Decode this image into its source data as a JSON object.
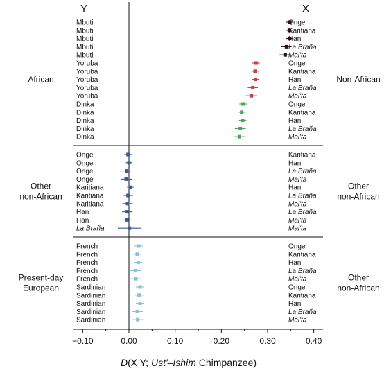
{
  "chart_data": {
    "type": "scatter",
    "error_bars": true,
    "headers": {
      "y": "Y",
      "x": "X"
    },
    "xlabel": {
      "prefix": "D",
      "open": "(X Y; ",
      "ital": "Ust'–Ishim",
      "close": " Chimpanzee)"
    },
    "xlim": [
      -0.12,
      0.42
    ],
    "xticks": [
      {
        "value": -0.1,
        "label": "−0.10"
      },
      {
        "value": 0.0,
        "label": "0.00"
      },
      {
        "value": 0.1,
        "label": "0.10"
      },
      {
        "value": 0.2,
        "label": "0.20"
      },
      {
        "value": 0.3,
        "label": "0.30"
      },
      {
        "value": 0.4,
        "label": "0.40"
      }
    ],
    "panels": [
      {
        "y_group": "African",
        "x_group": "Non-African",
        "rows": [
          {
            "y": "Mbuti",
            "x": "Onge",
            "value": 0.348,
            "err": 0.008,
            "color": "#2b0f16"
          },
          {
            "y": "Mbuti",
            "x": "Karitiana",
            "value": 0.347,
            "err": 0.008,
            "color": "#2b0f16"
          },
          {
            "y": "Mbuti",
            "x": "Han",
            "value": 0.348,
            "err": 0.008,
            "color": "#2b0f16"
          },
          {
            "y": "Mbuti",
            "x": "La Braña",
            "value": 0.341,
            "err": 0.011,
            "color": "#2b0f16",
            "x_italic": true
          },
          {
            "y": "Mbuti",
            "x": "Mal'ta",
            "value": 0.338,
            "err": 0.012,
            "color": "#2b0f16",
            "x_italic": true
          },
          {
            "y": "Yoruba",
            "x": "Onge",
            "value": 0.275,
            "err": 0.008,
            "color": "#d63a3f"
          },
          {
            "y": "Yoruba",
            "x": "Karitiana",
            "value": 0.273,
            "err": 0.008,
            "color": "#d63a3f"
          },
          {
            "y": "Yoruba",
            "x": "Han",
            "value": 0.274,
            "err": 0.008,
            "color": "#d63a3f"
          },
          {
            "y": "Yoruba",
            "x": "La Braña",
            "value": 0.268,
            "err": 0.011,
            "color": "#d63a3f",
            "x_italic": true
          },
          {
            "y": "Yoruba",
            "x": "Mal'ta",
            "value": 0.265,
            "err": 0.012,
            "color": "#d63a3f",
            "x_italic": true
          },
          {
            "y": "Dinka",
            "x": "Onge",
            "value": 0.247,
            "err": 0.008,
            "color": "#4aa84e"
          },
          {
            "y": "Dinka",
            "x": "Karitiana",
            "value": 0.244,
            "err": 0.008,
            "color": "#4aa84e"
          },
          {
            "y": "Dinka",
            "x": "Han",
            "value": 0.246,
            "err": 0.008,
            "color": "#4aa84e"
          },
          {
            "y": "Dinka",
            "x": "La Braña",
            "value": 0.241,
            "err": 0.012,
            "color": "#4aa84e",
            "x_italic": true
          },
          {
            "y": "Dinka",
            "x": "Mal'ta",
            "value": 0.239,
            "err": 0.012,
            "color": "#4aa84e",
            "x_italic": true
          }
        ]
      },
      {
        "y_group": "Other\nnon-African",
        "x_group": "Other\nnon-African",
        "rows": [
          {
            "y": "Onge",
            "x": "Karitiana",
            "value": -0.002,
            "err": 0.008,
            "color": "#3b5a9a"
          },
          {
            "y": "Onge",
            "x": "Han",
            "value": 0.0,
            "err": 0.007,
            "color": "#3b5a9a"
          },
          {
            "y": "Onge",
            "x": "La Braña",
            "value": -0.005,
            "err": 0.011,
            "color": "#3b5a9a",
            "x_italic": true
          },
          {
            "y": "Onge",
            "x": "Mal'ta",
            "value": -0.006,
            "err": 0.012,
            "color": "#3b5a9a",
            "x_italic": true
          },
          {
            "y": "Karitiana",
            "x": "Han",
            "value": 0.003,
            "err": 0.007,
            "color": "#3b5a9a"
          },
          {
            "y": "Karitiana",
            "x": "La Braña",
            "value": -0.002,
            "err": 0.011,
            "color": "#3b5a9a",
            "x_italic": true
          },
          {
            "y": "Karitiana",
            "x": "Mal'ta",
            "value": -0.003,
            "err": 0.011,
            "color": "#3b5a9a",
            "x_italic": true
          },
          {
            "y": "Han",
            "x": "La Braña",
            "value": -0.004,
            "err": 0.011,
            "color": "#3b5a9a",
            "x_italic": true
          },
          {
            "y": "Han",
            "x": "Mal'ta",
            "value": -0.004,
            "err": 0.011,
            "color": "#3b5a9a",
            "x_italic": true
          },
          {
            "y": "La Braña",
            "x": "Mal'ta",
            "value": 0.001,
            "err": 0.025,
            "color": "#3b5a9a",
            "y_italic": true,
            "x_italic": true
          }
        ]
      },
      {
        "y_group": "Present-day\nEuropean",
        "x_group": "Other\nnon-African",
        "rows": [
          {
            "y": "French",
            "x": "Onge",
            "value": 0.021,
            "err": 0.009,
            "color": "#86c3d6"
          },
          {
            "y": "French",
            "x": "Karitiana",
            "value": 0.018,
            "err": 0.009,
            "color": "#86c3d6"
          },
          {
            "y": "French",
            "x": "Han",
            "value": 0.02,
            "err": 0.009,
            "color": "#86c3d6"
          },
          {
            "y": "French",
            "x": "La Braña",
            "value": 0.014,
            "err": 0.012,
            "color": "#86c3d6",
            "x_italic": true
          },
          {
            "y": "French",
            "x": "Mal'ta",
            "value": 0.015,
            "err": 0.012,
            "color": "#86c3d6",
            "x_italic": true
          },
          {
            "y": "Sardinian",
            "x": "Onge",
            "value": 0.024,
            "err": 0.009,
            "color": "#86c3d6"
          },
          {
            "y": "Sardinian",
            "x": "Karitiana",
            "value": 0.022,
            "err": 0.009,
            "color": "#86c3d6"
          },
          {
            "y": "Sardinian",
            "x": "Han",
            "value": 0.024,
            "err": 0.009,
            "color": "#86c3d6"
          },
          {
            "y": "Sardinian",
            "x": "La Braña",
            "value": 0.018,
            "err": 0.012,
            "color": "#86c3d6",
            "x_italic": true
          },
          {
            "y": "Sardinian",
            "x": "Mal'ta",
            "value": 0.019,
            "err": 0.012,
            "color": "#86c3d6",
            "x_italic": true
          }
        ]
      }
    ]
  }
}
